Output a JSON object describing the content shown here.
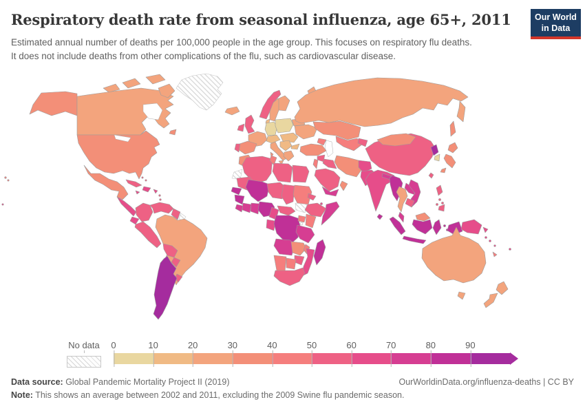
{
  "header": {
    "title": "Respiratory death rate from seasonal influenza, age 65+, 2011",
    "subtitle_line1": "Estimated annual number of deaths per 100,000 people in the age group. This focuses on respiratory flu deaths.",
    "subtitle_line2": "It does not include deaths from other complications of the flu, such as cardiovascular disease.",
    "logo": {
      "line1": "Our World",
      "line2": "in Data",
      "bg_color": "#1d3d63",
      "accent_color": "#d3362a"
    }
  },
  "legend": {
    "no_data_label": "No data",
    "ticks": [
      "0",
      "10",
      "20",
      "30",
      "40",
      "50",
      "60",
      "70",
      "80",
      "90"
    ]
  },
  "map": {
    "palette": [
      "#e9d7a0",
      "#f0ba84",
      "#f3a47d",
      "#f38f78",
      "#f57e7d",
      "#ee6184",
      "#e64d8a",
      "#d63e92",
      "#c03097",
      "#a52c9e"
    ],
    "border_color": "#9c9c9c",
    "nodata_stroke": "#c6c6c6",
    "regions": {
      "canada": 2,
      "alaska": 3,
      "greenland": "nodata",
      "iceland": 2,
      "usa": 3,
      "newfoundland": 3,
      "mexico": 3,
      "central-america": 6,
      "cuba": 5,
      "hispaniola": 6,
      "jamaica": 6,
      "puerto-rico": 6,
      "lesser-antilles": 5,
      "bahamas": 5,
      "hawaii": 4,
      "colombia": 5,
      "venezuela": 5,
      "guyana-suriname": 5,
      "french-guiana": "nodata",
      "ecuador": 6,
      "peru": 5,
      "brazil": 2,
      "bolivia": 5,
      "paraguay": 5,
      "uruguay": 5,
      "argentina-chile": 9,
      "norway": 5,
      "sweden": 2,
      "finland": 2,
      "uk": 5,
      "ireland": 5,
      "denmark": 1,
      "france": 2,
      "spain": 3,
      "portugal": 5,
      "germany": 0,
      "poland-baltics": 0,
      "central-europe": 1,
      "italy": 2,
      "sardinia": 3,
      "hungary-romania": 1,
      "balkans": 1,
      "bulgaria": 1,
      "greece": 2,
      "ukraine": 2,
      "belarus": 2,
      "novaya-zemlya": 2,
      "russia": 2,
      "sakhalin": 3,
      "kazakhstan": 3,
      "central-asia": 4,
      "kyrgyz-tajik": 5,
      "caucasus": 4,
      "turkey": 3,
      "syria": 5,
      "iraq": 5,
      "levant": 4,
      "iran": 3,
      "afghanistan": 6,
      "pakistan": 6,
      "saudi-arabia": 5,
      "yemen": 7,
      "oman": 3,
      "india": 6,
      "nepal": 7,
      "bangladesh": 8,
      "sri-lanka": 8,
      "china": 5,
      "mongolia": 3,
      "north-korea": 9,
      "south-korea": 0,
      "japan": 3,
      "taiwan": 5,
      "myanmar": 8,
      "thailand": 2,
      "laos": 7,
      "vietnam": 7,
      "cambodia": 5,
      "malay-peninsula": 7,
      "sumatra": 8,
      "java": 8,
      "borneo-malaysia": 3,
      "kalimantan": 8,
      "sulawesi": 8,
      "moluccas": 8,
      "west-papua": 8,
      "papua-new-guinea": 6,
      "philippines": 5,
      "australia": 2,
      "new-zealand": 2,
      "pacific-islands": 6,
      "new-caledonia": 4,
      "morocco": 3,
      "western-sahara": "nodata",
      "algeria": 5,
      "tunisia": 4,
      "libya": 5,
      "egypt": 5,
      "mauritania": 5,
      "mali": 8,
      "niger": 5,
      "chad": 5,
      "sudan": 4,
      "eritrea": 5,
      "south-sudan": "nodata",
      "ethiopia": 5,
      "somalia": 7,
      "djibouti": 6,
      "senegal": 8,
      "guinea": 8,
      "sierra-leone-liberia": 7,
      "ivory-coast": 7,
      "ghana-togo-benin": 7,
      "nigeria": 8,
      "cameroon": 6,
      "central-african-republic": 5,
      "gabon-congo": 6,
      "drc": 8,
      "uganda": 4,
      "kenya": 4,
      "tanzania": 7,
      "angola": 7,
      "zambia": 3,
      "malawi": 4,
      "mozambique": 6,
      "zimbabwe": 5,
      "namibia": 4,
      "botswana": 4,
      "south-africa": 5,
      "madagascar": 8
    }
  },
  "footer": {
    "source_label": "Data source:",
    "source_text": " Global Pandemic Mortality Project II (2019)",
    "link_text": "OurWorldinData.org/influenza-deaths | CC BY",
    "note_label": "Note:",
    "note_text": " This shows an average between 2002 and 2011, excluding the 2009 Swine flu pandemic season."
  }
}
